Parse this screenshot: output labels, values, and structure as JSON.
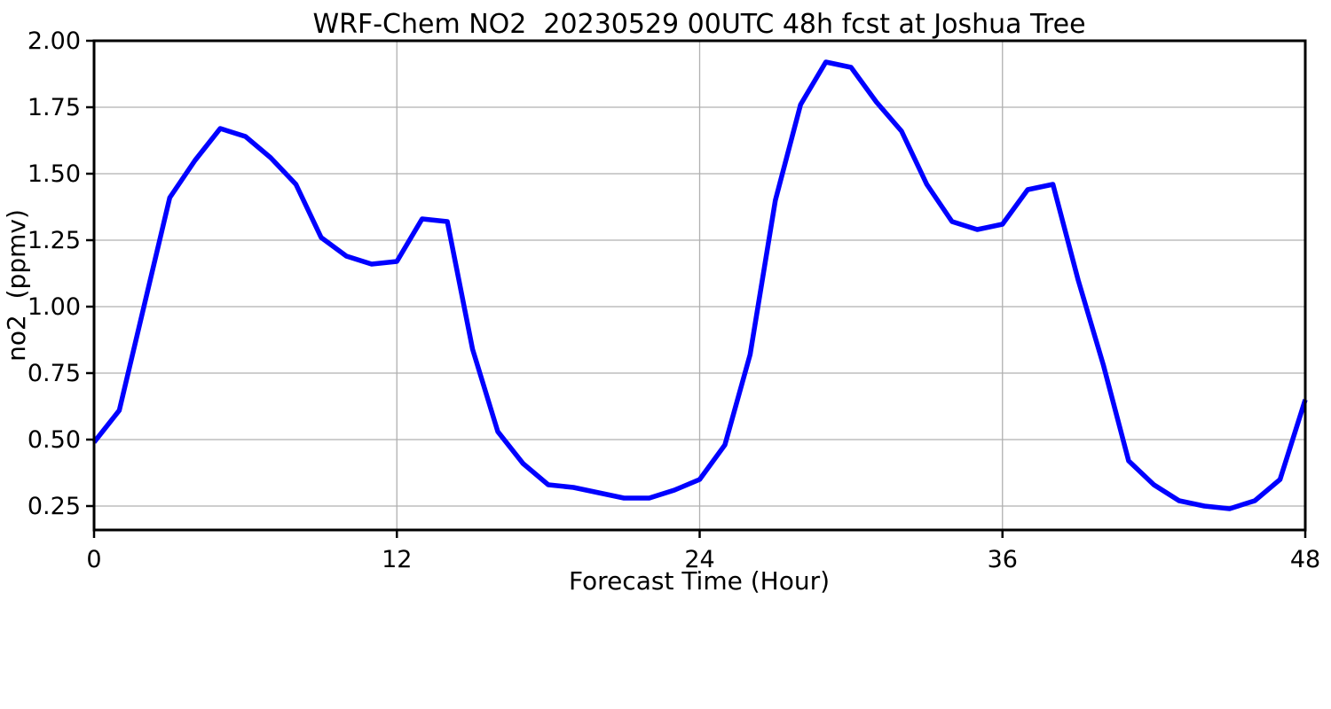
{
  "figure": {
    "title": "WRF-Chem NO2  20230529 00UTC 48h fcst at Joshua Tree"
  },
  "chart_data": {
    "type": "line",
    "title": "WRF-Chem NO2  20230529 00UTC 48h fcst at Joshua Tree",
    "xlabel": "Forecast Time (Hour)",
    "ylabel": "no2  (ppmv)",
    "series": [
      {
        "name": "no2",
        "x": [
          0,
          1,
          2,
          3,
          4,
          5,
          6,
          7,
          8,
          9,
          10,
          11,
          12,
          13,
          14,
          15,
          16,
          17,
          18,
          19,
          20,
          21,
          22,
          23,
          24,
          25,
          26,
          27,
          28,
          29,
          30,
          31,
          32,
          33,
          34,
          35,
          36,
          37,
          38,
          39,
          40,
          41,
          42,
          43,
          44,
          45,
          46,
          47,
          48
        ],
        "values": [
          0.49,
          0.61,
          1.01,
          1.41,
          1.55,
          1.67,
          1.64,
          1.56,
          1.46,
          1.26,
          1.19,
          1.16,
          1.17,
          1.33,
          1.32,
          0.84,
          0.53,
          0.41,
          0.33,
          0.32,
          0.3,
          0.28,
          0.28,
          0.31,
          0.35,
          0.48,
          0.82,
          1.4,
          1.76,
          1.92,
          1.9,
          1.77,
          1.66,
          1.46,
          1.32,
          1.29,
          1.31,
          1.44,
          1.46,
          1.1,
          0.78,
          0.42,
          0.33,
          0.27,
          0.25,
          0.24,
          0.27,
          0.35,
          0.65
        ]
      }
    ],
    "xticks": [
      0,
      12,
      24,
      36,
      48
    ],
    "xtick_labels": [
      "0",
      "12",
      "24",
      "36",
      "48"
    ],
    "yticks": [
      0.25,
      0.5,
      0.75,
      1.0,
      1.25,
      1.5,
      1.75,
      2.0
    ],
    "ytick_labels": [
      "0.25",
      "0.50",
      "0.75",
      "1.00",
      "1.25",
      "1.50",
      "1.75",
      "2.00"
    ],
    "xlim": [
      0,
      48
    ],
    "ylim": [
      0.16,
      2.0
    ],
    "grid": true,
    "legend_position": "none",
    "line_color": "#0000ff",
    "line_width": 5.5,
    "grid_color": "#b0b0b0",
    "axis_color": "#000000",
    "background_color": "#ffffff"
  }
}
